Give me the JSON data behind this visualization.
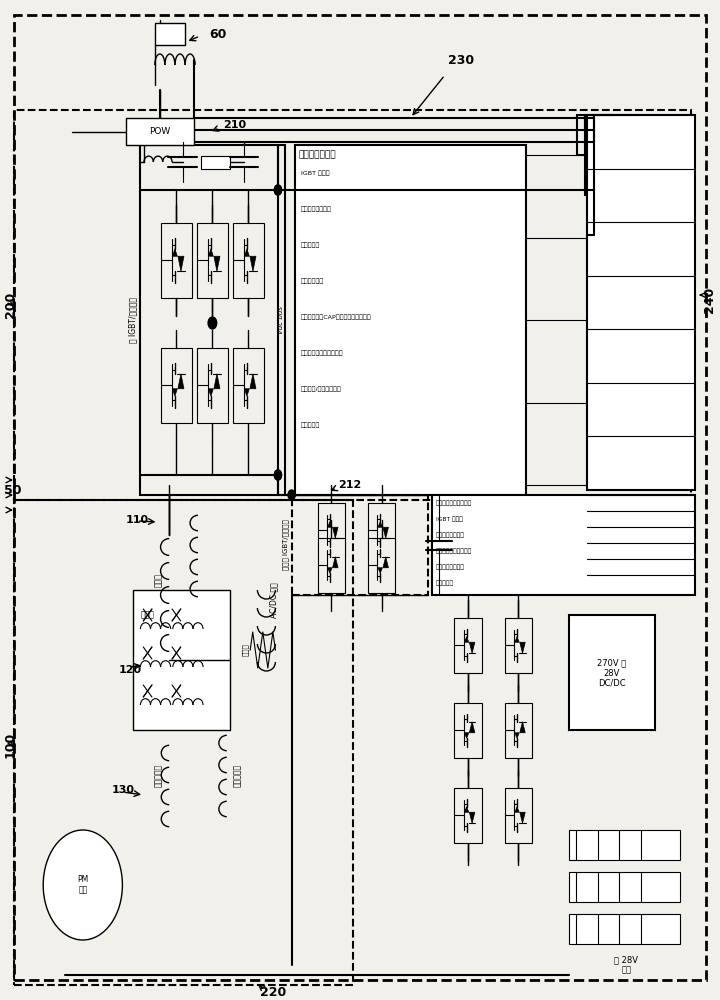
{
  "bg_color": "#f2f0eb",
  "lc": "#000000",
  "white": "#ffffff",
  "text_main_control": "主数字控制组件",
  "text_igbt_filter": "IGBT 滤波；",
  "text_current_voltage": "电流和电压感测；",
  "text_loop_comp": "闭环补偿；",
  "text_field_orient": "场定向控制；",
  "text_charge_cap": "充电接触器（CAP）充电接触器控制；",
  "text_adaptive_filter": "软滤波器电容器观察器；",
  "text_rotor_pos": "转子位置/速度观察器；",
  "text_protect": "保护和位。",
  "text_main_igbt": "主 IGBT/二极管桥",
  "text_exc_igbt_bridge": "励磁机 IGBT/二极管桥",
  "text_acdc": "AC/DC 络组",
  "text_main_stator": "主定子",
  "text_main_rotor": "主转子",
  "text_exc_rotor": "励磁机转子",
  "text_exc_stator": "励磁机定子",
  "text_pm_rotor": "PM\n转子",
  "text_contactor": "接触器",
  "text_vdcbus": "Vdc bus",
  "text_270v": "270V 至\n28V\nDC/DC",
  "text_28v_battery": "至 28V\n电池",
  "text_exc_digital": "励磁机数字控制组件；",
  "text_exc_igbt_filter": "IGBT 滤波；",
  "text_exc_current": "电流和电压感测；",
  "text_exc_flux": "励磁机磁通调整控制；",
  "text_exc_field": "自磁场前馈控制；",
  "text_exc_protect": "保护和位。"
}
